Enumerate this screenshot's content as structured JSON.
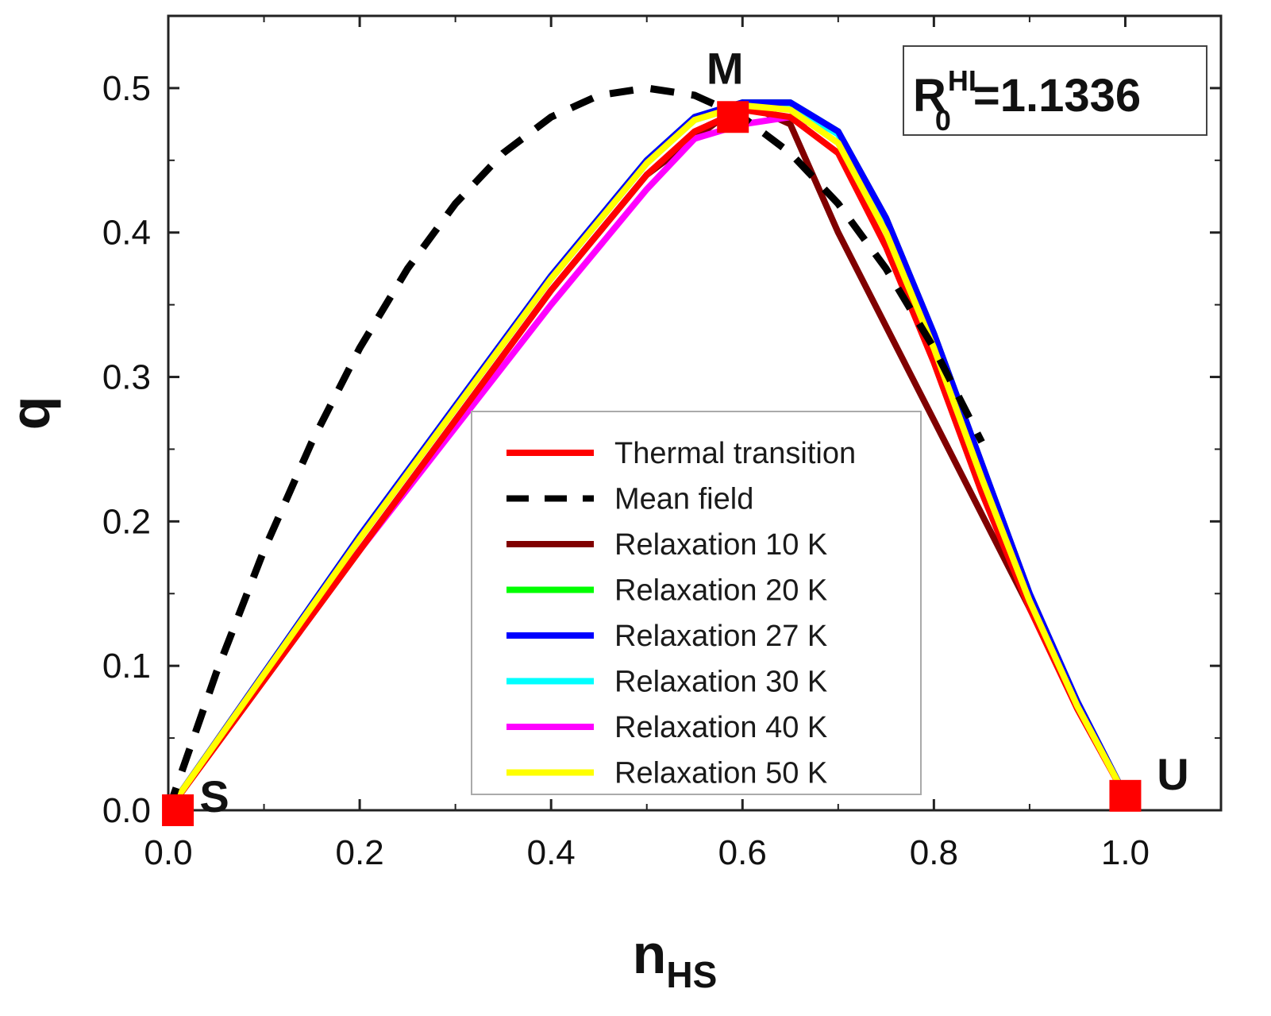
{
  "chart_data": {
    "type": "line",
    "xlabel": "n",
    "xlabel_sub": "HS",
    "ylabel": "q",
    "xlim": [
      0.0,
      1.1
    ],
    "ylim": [
      0.0,
      0.55
    ],
    "x_ticks": [
      "0.0",
      "0.2",
      "0.4",
      "0.6",
      "0.8",
      "1.0"
    ],
    "y_ticks": [
      "0.0",
      "0.1",
      "0.2",
      "0.3",
      "0.4",
      "0.5"
    ],
    "grid": false,
    "legend_position": "center-bottom",
    "info_box": {
      "main": "R",
      "sub": "0",
      "sup": "HL",
      "value": "=1.1336"
    },
    "series": [
      {
        "name": "Thermal transition",
        "color": "#ff0000",
        "dash": "solid",
        "x": [
          0.0,
          0.1,
          0.2,
          0.3,
          0.4,
          0.5,
          0.55,
          0.6,
          0.65,
          0.7,
          0.75,
          0.8,
          0.85,
          0.9,
          0.95,
          1.0
        ],
        "y": [
          0.0,
          0.09,
          0.18,
          0.27,
          0.36,
          0.44,
          0.47,
          0.485,
          0.48,
          0.455,
          0.39,
          0.31,
          0.22,
          0.14,
          0.07,
          0.01
        ]
      },
      {
        "name": "Mean field",
        "color": "#000000",
        "dash": "dashed",
        "x": [
          0.0,
          0.05,
          0.1,
          0.15,
          0.2,
          0.25,
          0.3,
          0.35,
          0.4,
          0.45,
          0.5,
          0.55,
          0.6,
          0.65,
          0.7,
          0.75,
          0.8,
          0.85
        ],
        "y": [
          0.0,
          0.095,
          0.18,
          0.255,
          0.32,
          0.375,
          0.42,
          0.455,
          0.48,
          0.495,
          0.5,
          0.495,
          0.48,
          0.455,
          0.42,
          0.375,
          0.32,
          0.255
        ]
      },
      {
        "name": "Relaxation 10 K",
        "color": "#800000",
        "dash": "solid",
        "x": [
          0.0,
          0.1,
          0.2,
          0.3,
          0.4,
          0.5,
          0.6,
          0.65,
          0.7,
          0.8,
          0.9,
          1.0
        ],
        "y": [
          0.0,
          0.09,
          0.18,
          0.27,
          0.36,
          0.44,
          0.49,
          0.475,
          0.4,
          0.27,
          0.14,
          0.01
        ]
      },
      {
        "name": "Relaxation 20 K",
        "color": "#00ff00",
        "dash": "solid",
        "x": [
          0.0,
          0.1,
          0.2,
          0.3,
          0.4,
          0.5,
          0.55,
          0.6,
          0.65,
          0.7,
          0.75,
          0.8,
          0.85,
          0.9,
          0.95,
          1.0
        ],
        "y": [
          0.0,
          0.095,
          0.19,
          0.28,
          0.37,
          0.45,
          0.48,
          0.49,
          0.49,
          0.47,
          0.41,
          0.33,
          0.24,
          0.15,
          0.075,
          0.01
        ]
      },
      {
        "name": "Relaxation 27 K",
        "color": "#0000ff",
        "dash": "solid",
        "x": [
          0.0,
          0.1,
          0.2,
          0.3,
          0.4,
          0.5,
          0.55,
          0.6,
          0.65,
          0.7,
          0.75,
          0.8,
          0.85,
          0.9,
          0.95,
          1.0
        ],
        "y": [
          0.0,
          0.095,
          0.19,
          0.28,
          0.37,
          0.45,
          0.48,
          0.49,
          0.49,
          0.47,
          0.41,
          0.33,
          0.24,
          0.15,
          0.075,
          0.01
        ]
      },
      {
        "name": "Relaxation 30 K",
        "color": "#00ffff",
        "dash": "solid",
        "x": [
          0.0,
          0.1,
          0.2,
          0.3,
          0.4,
          0.5,
          0.55,
          0.6,
          0.65,
          0.7,
          0.75,
          0.8,
          0.85,
          0.9,
          0.95,
          1.0
        ],
        "y": [
          0.0,
          0.094,
          0.188,
          0.278,
          0.368,
          0.448,
          0.478,
          0.488,
          0.488,
          0.468,
          0.408,
          0.328,
          0.238,
          0.148,
          0.074,
          0.01
        ]
      },
      {
        "name": "Relaxation 40 K",
        "color": "#ff00ff",
        "dash": "solid",
        "x": [
          0.0,
          0.1,
          0.2,
          0.3,
          0.4,
          0.5,
          0.55,
          0.6,
          0.65,
          0.7,
          0.75,
          0.8,
          0.85,
          0.9,
          0.95,
          1.0
        ],
        "y": [
          0.0,
          0.095,
          0.18,
          0.265,
          0.35,
          0.43,
          0.465,
          0.475,
          0.48,
          0.47,
          0.41,
          0.33,
          0.24,
          0.15,
          0.075,
          0.01
        ]
      },
      {
        "name": "Relaxation 50 K",
        "color": "#ffff00",
        "dash": "solid",
        "x": [
          0.0,
          0.1,
          0.2,
          0.3,
          0.4,
          0.5,
          0.55,
          0.6,
          0.65,
          0.7,
          0.75,
          0.8,
          0.85,
          0.9,
          0.95,
          1.0
        ],
        "y": [
          0.0,
          0.094,
          0.188,
          0.278,
          0.368,
          0.448,
          0.478,
          0.488,
          0.485,
          0.462,
          0.4,
          0.32,
          0.23,
          0.145,
          0.072,
          0.01
        ]
      }
    ],
    "markers": [
      {
        "label": "S",
        "x": 0.01,
        "y": 0.0,
        "color": "#ff0000"
      },
      {
        "label": "M",
        "x": 0.59,
        "y": 0.48,
        "color": "#ff0000"
      },
      {
        "label": "U",
        "x": 1.0,
        "y": 0.01,
        "color": "#ff0000"
      }
    ]
  }
}
